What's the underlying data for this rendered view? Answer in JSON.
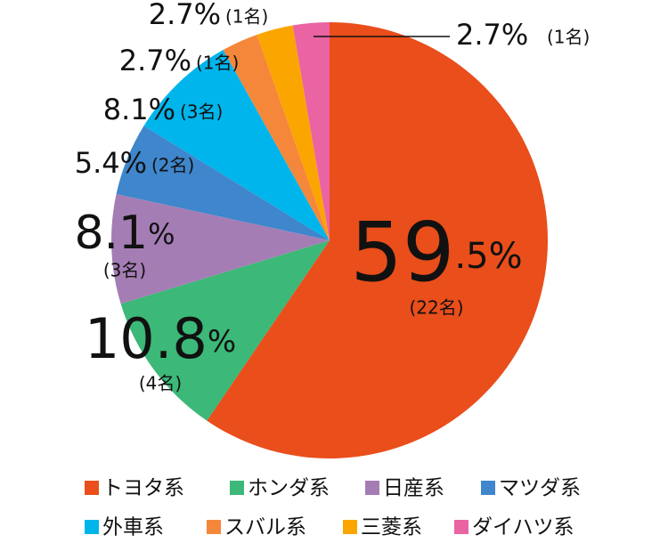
{
  "chart_data": {
    "type": "pie",
    "categories": [
      "トヨタ系",
      "ホンダ系",
      "日産系",
      "マツダ系",
      "外車系",
      "スバル系",
      "三菱系",
      "ダイハツ系"
    ],
    "values": [
      59.5,
      10.8,
      8.1,
      5.4,
      8.1,
      2.7,
      2.7,
      2.7
    ],
    "value_labels": [
      "59.5%",
      "10.8%",
      "8.1%",
      "5.4%",
      "8.1%",
      "2.7%",
      "2.7%",
      "2.7%"
    ],
    "count_labels": [
      "(22名)",
      "(4名)",
      "(3名)",
      "(2名)",
      "(3名)",
      "(1名)",
      "(1名)",
      "(1名)"
    ],
    "colors": [
      "#e94e1b",
      "#3cb878",
      "#a57db5",
      "#3f86cc",
      "#00b5ec",
      "#f5873a",
      "#fba500",
      "#ea63a3"
    ],
    "legend": "bottom"
  }
}
